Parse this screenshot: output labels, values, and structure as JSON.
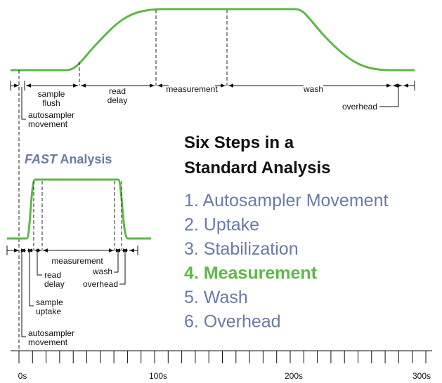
{
  "standard": {
    "labels": {
      "sample_flush": [
        "sample",
        "flush"
      ],
      "read_delay": [
        "read",
        "delay"
      ],
      "measurement": "measurement",
      "wash": "wash",
      "overhead": "overhead",
      "autosampler": [
        "autosampler",
        "movement"
      ]
    }
  },
  "fast": {
    "title": {
      "emphasis": "FAST",
      "rest": "Analysis"
    },
    "labels": {
      "measurement": "measurement",
      "read_delay": [
        "read",
        "delay"
      ],
      "wash": "wash",
      "overhead": "overhead",
      "sample_uptake": [
        "sample",
        "uptake"
      ],
      "autosampler": [
        "autosampler",
        "movement"
      ]
    }
  },
  "steps": {
    "title": [
      "Six Steps in a",
      "Standard Analysis"
    ],
    "items": [
      "1.  Autosampler Movement",
      "2.  Uptake",
      "3.  Stabilization",
      "4.  Measurement",
      "5.  Wash",
      "6.  Overhead"
    ],
    "highlight": 3
  },
  "axis": {
    "labels": [
      "0s",
      "100s",
      "200s",
      "300s"
    ]
  }
}
